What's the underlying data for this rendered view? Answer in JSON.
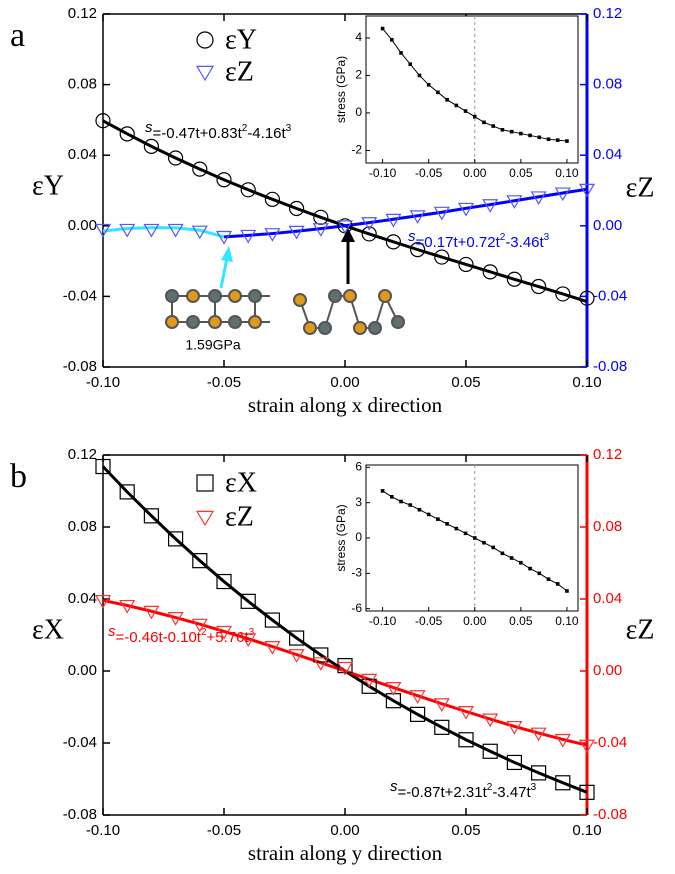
{
  "chart_data": [
    {
      "type": "scatter",
      "panel_label": "a",
      "xlabel": "strain along x direction",
      "ylabel": "εY",
      "y2label": "εZ",
      "y2_color": "#0000ff",
      "xlim": [
        -0.1,
        0.1
      ],
      "ylim": [
        -0.08,
        0.12
      ],
      "y2lim": [
        -0.08,
        0.12
      ],
      "xticks": [
        {
          "value": -0.1,
          "label": "-0.10"
        },
        -0.05,
        {
          "value": 0,
          "label": "0.00"
        },
        0.05,
        {
          "value": 0.1,
          "label": "0.10"
        }
      ],
      "yticks": [
        -0.08,
        -0.04,
        {
          "value": 0,
          "label": "0.00"
        },
        0.04,
        0.08,
        0.12
      ],
      "y2ticks": [
        -0.08,
        -0.04,
        {
          "value": 0,
          "label": "0.00"
        },
        0.04,
        0.08,
        0.12
      ],
      "x": [
        -0.1,
        -0.09,
        -0.08,
        -0.07,
        -0.06,
        -0.05,
        -0.04,
        -0.03,
        -0.02,
        -0.01,
        0,
        0.01,
        0.02,
        0.03,
        0.04,
        0.05,
        0.06,
        0.07,
        0.08,
        0.09,
        0.1
      ],
      "series": [
        {
          "name": "εY",
          "color": "#000000",
          "marker": "circle",
          "values": [
            0.0595,
            0.0521,
            0.045,
            0.0384,
            0.0321,
            0.0261,
            0.0204,
            0.015,
            0.0098,
            0.0048,
            0,
            -0.0046,
            -0.0091,
            -0.0135,
            -0.0177,
            -0.0219,
            -0.0261,
            -0.0303,
            -0.0344,
            -0.0386,
            -0.041
          ]
        },
        {
          "name": "εZ",
          "color": "#5555ff",
          "marker": "triangle",
          "axis": "y2",
          "values": [
            -0.002,
            -0.002,
            -0.002,
            -0.002,
            -0.003,
            -0.006,
            -0.0054,
            -0.0044,
            -0.0031,
            -0.0016,
            0,
            0.0018,
            0.0037,
            0.0057,
            0.0077,
            0.0099,
            0.012,
            0.0142,
            0.0164,
            0.0186,
            0.0207
          ]
        }
      ],
      "fits": [
        {
          "color": "#000000",
          "values": [
            0.0595,
            0.0521,
            0.045,
            0.0384,
            0.0321,
            0.0261,
            0.0204,
            0.015,
            0.0098,
            0.0048,
            0,
            -0.0046,
            -0.0091,
            -0.0135,
            -0.0177,
            -0.0219,
            -0.0261,
            -0.0303,
            -0.0344,
            -0.0386,
            -0.0429
          ]
        },
        {
          "color": "#33e6ff",
          "axis": "y2",
          "values": [
            -0.003,
            -0.0015,
            -0.001,
            -0.0012,
            -0.0025,
            -0.0063,
            null,
            null,
            null,
            null,
            null,
            null,
            null,
            null,
            null,
            null,
            null,
            null,
            null,
            null,
            null
          ]
        },
        {
          "color": "#0000ff",
          "axis": "y2",
          "values": [
            null,
            null,
            null,
            null,
            null,
            -0.0063,
            -0.0054,
            -0.0044,
            -0.0031,
            -0.0016,
            0,
            0.0018,
            0.0037,
            0.0057,
            0.0077,
            0.0099,
            0.012,
            0.0142,
            0.0164,
            0.0186,
            0.0207
          ]
        }
      ],
      "equations": [
        {
          "color": "#000000",
          "parts": [
            "s",
            "=-0.47t+0.83t",
            "2",
            "-4.16t",
            "3"
          ]
        },
        {
          "color": "#0000ff",
          "parts": [
            "s",
            "=0.17t+0.72t",
            "2",
            "-3.46t",
            "3"
          ]
        }
      ],
      "annotations": [
        "1.59GPa"
      ]
    },
    {
      "type": "scatter",
      "panel_label": "b",
      "xlabel": "strain along y direction",
      "ylabel": "εX",
      "y2label": "εZ",
      "y2_color": "#ff0000",
      "xlim": [
        -0.1,
        0.1
      ],
      "ylim": [
        -0.08,
        0.12
      ],
      "y2lim": [
        -0.08,
        0.12
      ],
      "xticks": [
        {
          "value": -0.1,
          "label": "-0.10"
        },
        -0.05,
        {
          "value": 0,
          "label": "0.00"
        },
        0.05,
        {
          "value": 0.1,
          "label": "0.10"
        }
      ],
      "yticks": [
        -0.08,
        -0.04,
        {
          "value": 0,
          "label": "0.00"
        },
        0.04,
        0.08,
        0.12
      ],
      "y2ticks": [
        -0.08,
        -0.04,
        {
          "value": 0,
          "label": "0.00"
        },
        0.04,
        0.08,
        0.12
      ],
      "x": [
        -0.1,
        -0.09,
        -0.08,
        -0.07,
        -0.06,
        -0.05,
        -0.04,
        -0.03,
        -0.02,
        -0.01,
        0,
        0.01,
        0.02,
        0.03,
        0.04,
        0.05,
        0.06,
        0.07,
        0.08,
        0.09,
        0.1
      ],
      "series": [
        {
          "name": "εX",
          "color": "#000000",
          "marker": "square",
          "values": [
            0.1136,
            0.0995,
            0.0862,
            0.0734,
            0.0613,
            0.0497,
            0.0387,
            0.0283,
            0.0183,
            0.0089,
            0.003,
            -0.0085,
            -0.0165,
            -0.0241,
            -0.0313,
            -0.0382,
            -0.0446,
            -0.0508,
            -0.0566,
            -0.0621,
            -0.0674
          ]
        },
        {
          "name": "εZ",
          "color": "#ff3333",
          "marker": "triangle",
          "axis": "y2",
          "values": [
            0.0392,
            0.0364,
            0.0332,
            0.0297,
            0.026,
            0.022,
            0.0179,
            0.0136,
            0.0091,
            0.0046,
            0.002,
            -0.0046,
            -0.0092,
            -0.0137,
            -0.0182,
            -0.0225,
            -0.0267,
            -0.0308,
            -0.0345,
            -0.038,
            -0.0412
          ]
        }
      ],
      "fits": [
        {
          "color": "#000000",
          "values": [
            0.1136,
            0.0995,
            0.0862,
            0.0734,
            0.0613,
            0.0497,
            0.0387,
            0.0283,
            0.0183,
            0.0089,
            0,
            -0.0085,
            -0.0165,
            -0.0241,
            -0.0313,
            -0.0382,
            -0.0446,
            -0.0508,
            -0.0566,
            -0.0621,
            -0.0674
          ]
        },
        {
          "color": "#ff0000",
          "axis": "y2",
          "values": [
            0.0392,
            0.0364,
            0.0332,
            0.0297,
            0.026,
            0.022,
            0.0179,
            0.0136,
            0.0091,
            0.0046,
            0,
            -0.0046,
            -0.0092,
            -0.0137,
            -0.0182,
            -0.0225,
            -0.0267,
            -0.0308,
            -0.0345,
            -0.038,
            -0.0412
          ]
        }
      ],
      "equations": [
        {
          "color": "#ff0000",
          "parts": [
            "s",
            "=-0.46t-0.10t",
            "2",
            "+5.76t",
            "3"
          ]
        },
        {
          "color": "#000000",
          "parts": [
            "s",
            "=-0.87t+2.31t",
            "2",
            "-3.47t",
            "3"
          ]
        }
      ]
    },
    {
      "type": "line",
      "ylabel": "stress (GPa)",
      "color": "#000000",
      "xlim": [
        -0.118,
        0.112
      ],
      "ylim": [
        -2.67,
        5.17
      ],
      "xticks": [
        {
          "value": -0.1,
          "label": "-0.10"
        },
        -0.05,
        {
          "value": 0,
          "label": "0.00"
        },
        0.05,
        {
          "value": 0.1,
          "label": "0.10"
        }
      ],
      "yticks": [
        -2,
        0,
        2,
        4
      ],
      "x": [
        -0.1,
        -0.09,
        -0.08,
        -0.07,
        -0.06,
        -0.05,
        -0.04,
        -0.03,
        -0.02,
        -0.01,
        0,
        0.01,
        0.02,
        0.03,
        0.04,
        0.05,
        0.06,
        0.07,
        0.08,
        0.09,
        0.1
      ],
      "values": [
        4.5,
        3.9,
        3.2,
        2.6,
        2.0,
        1.5,
        1.1,
        0.7,
        0.4,
        0.1,
        -0.2,
        -0.5,
        -0.7,
        -0.9,
        -1.0,
        -1.1,
        -1.2,
        -1.3,
        -1.4,
        -1.45,
        -1.5
      ]
    },
    {
      "type": "line",
      "ylabel": "stress (GPa)",
      "color": "#000000",
      "xlim": [
        -0.118,
        0.112
      ],
      "ylim": [
        -6.2,
        6.2
      ],
      "xticks": [
        {
          "value": -0.1,
          "label": "-0.10"
        },
        -0.05,
        {
          "value": 0,
          "label": "0.00"
        },
        0.05,
        {
          "value": 0.1,
          "label": "0.10"
        }
      ],
      "yticks": [
        -6,
        -3,
        0,
        3,
        6
      ],
      "x": [
        -0.1,
        -0.09,
        -0.08,
        -0.07,
        -0.06,
        -0.05,
        -0.04,
        -0.03,
        -0.02,
        -0.01,
        0,
        0.01,
        0.02,
        0.03,
        0.04,
        0.05,
        0.06,
        0.07,
        0.08,
        0.09,
        0.1
      ],
      "values": [
        4.0,
        3.5,
        3.1,
        2.8,
        2.4,
        2.0,
        1.6,
        1.2,
        0.8,
        0.4,
        0,
        -0.4,
        -0.8,
        -1.3,
        -1.7,
        -2.1,
        -2.6,
        -3.0,
        -3.5,
        -3.9,
        -4.5
      ]
    }
  ]
}
